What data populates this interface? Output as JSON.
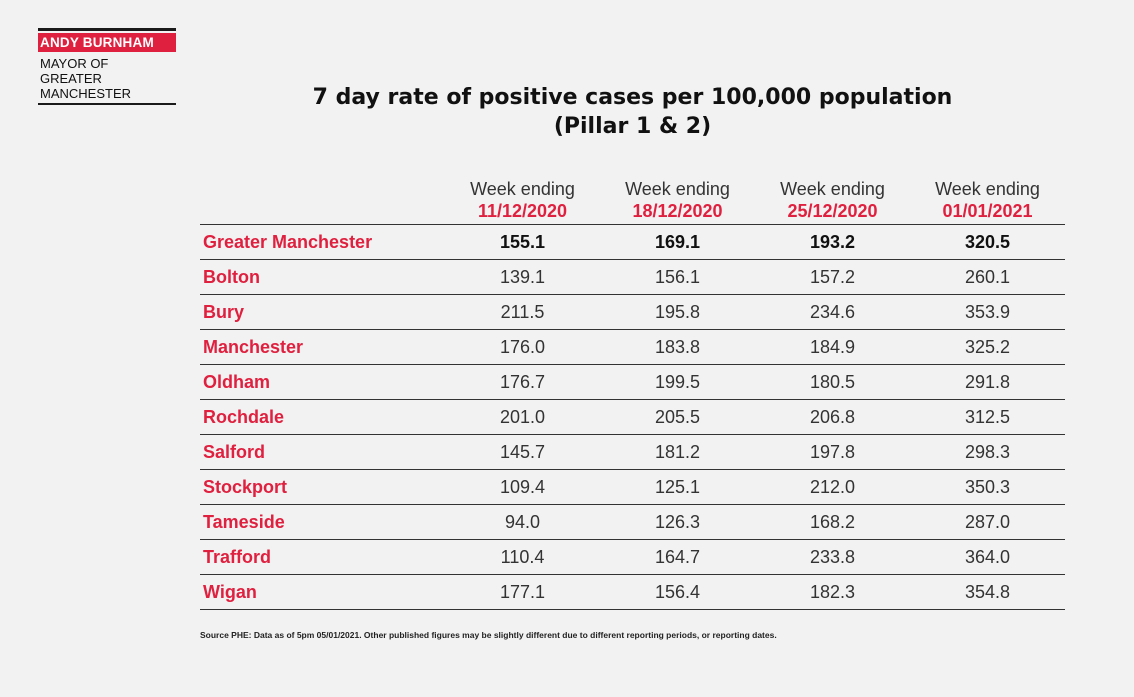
{
  "logo": {
    "name": "ANDY BURNHAM",
    "mayor_lines": [
      "MAYOR OF",
      "GREATER",
      "MANCHESTER"
    ]
  },
  "title": {
    "line1": "7 day rate of positive cases per 100,000 population",
    "line2": "(Pillar 1 & 2)"
  },
  "table": {
    "week_label": "Week ending",
    "dates": [
      "11/12/2020",
      "18/12/2020",
      "25/12/2020",
      "01/01/2021"
    ],
    "rows": [
      {
        "area": "Greater Manchester",
        "values": [
          "155.1",
          "169.1",
          "193.2",
          "320.5"
        ]
      },
      {
        "area": "Bolton",
        "values": [
          "139.1",
          "156.1",
          "157.2",
          "260.1"
        ]
      },
      {
        "area": "Bury",
        "values": [
          "211.5",
          "195.8",
          "234.6",
          "353.9"
        ]
      },
      {
        "area": "Manchester",
        "values": [
          "176.0",
          "183.8",
          "184.9",
          "325.2"
        ]
      },
      {
        "area": "Oldham",
        "values": [
          "176.7",
          "199.5",
          "180.5",
          "291.8"
        ]
      },
      {
        "area": "Rochdale",
        "values": [
          "201.0",
          "205.5",
          "206.8",
          "312.5"
        ]
      },
      {
        "area": "Salford",
        "values": [
          "145.7",
          "181.2",
          "197.8",
          "298.3"
        ]
      },
      {
        "area": "Stockport",
        "values": [
          "109.4",
          "125.1",
          "212.0",
          "350.3"
        ]
      },
      {
        "area": "Tameside",
        "values": [
          "94.0",
          "126.3",
          "168.2",
          "287.0"
        ]
      },
      {
        "area": "Trafford",
        "values": [
          "110.4",
          "164.7",
          "233.8",
          "364.0"
        ]
      },
      {
        "area": "Wigan",
        "values": [
          "177.1",
          "156.4",
          "182.3",
          "354.8"
        ]
      }
    ]
  },
  "source": "Source PHE: Data as of 5pm 05/01/2021. Other published figures may be slightly different due to different reporting periods, or reporting dates.",
  "colors": {
    "accent": "#e0203f",
    "background": "#f2f2f2",
    "text": "#1a1a1a"
  }
}
